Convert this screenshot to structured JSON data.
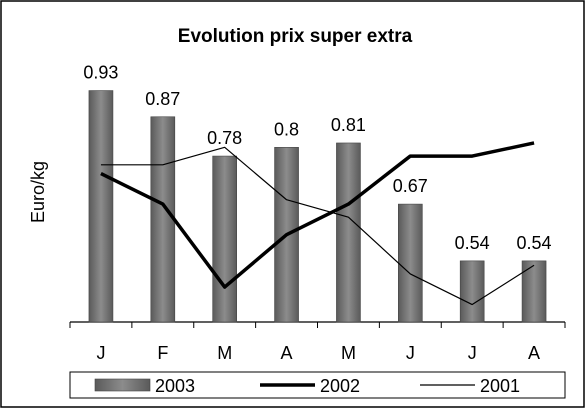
{
  "chart_data": {
    "type": "bar_line",
    "title": "Evolution prix super extra",
    "ylabel": "Euro/kg",
    "categories": [
      "J",
      "F",
      "M",
      "A",
      "M",
      "J",
      "J",
      "A"
    ],
    "ylim": [
      0.4,
      1.0
    ],
    "series": [
      {
        "name": "2003",
        "type": "bar",
        "color": "#8c8c8c",
        "values": [
          0.93,
          0.87,
          0.78,
          0.8,
          0.81,
          0.67,
          0.54,
          0.54
        ]
      },
      {
        "name": "2002",
        "type": "line",
        "color": "#000000",
        "width": 3.5,
        "values": [
          0.74,
          0.67,
          0.48,
          0.6,
          0.67,
          0.78,
          0.78,
          0.81
        ]
      },
      {
        "name": "2001",
        "type": "line",
        "color": "#000000",
        "width": 1.2,
        "values": [
          0.76,
          0.76,
          0.8,
          0.68,
          0.64,
          0.51,
          0.44,
          0.53
        ]
      }
    ]
  }
}
